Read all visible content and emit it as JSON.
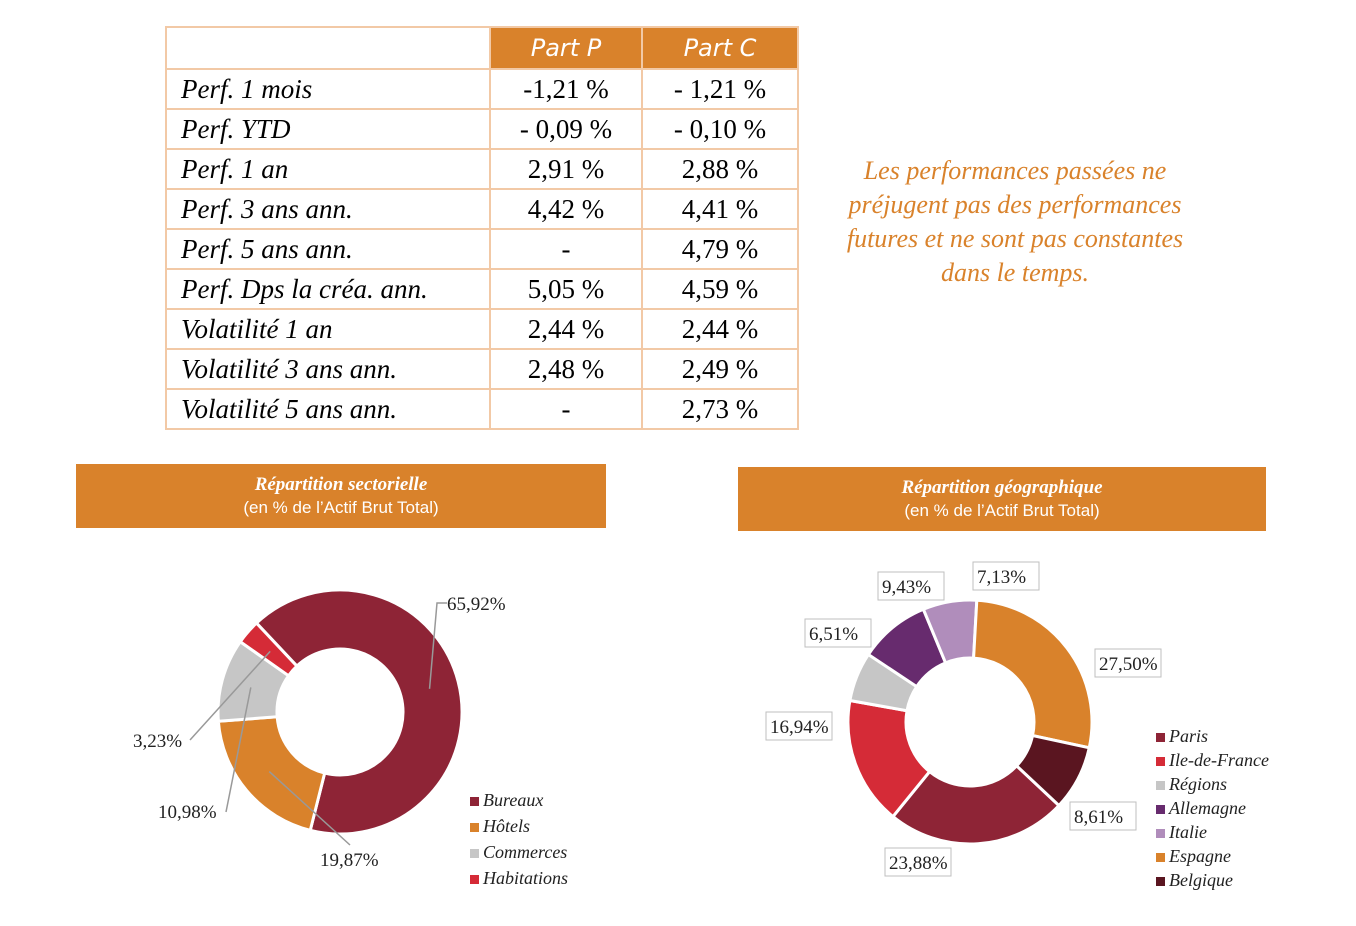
{
  "table": {
    "headers": [
      "",
      "Part P",
      "Part C"
    ],
    "rows": [
      {
        "label": "Perf. 1 mois",
        "p": "-1,21 %",
        "c": "- 1,21 %"
      },
      {
        "label": "Perf. YTD",
        "p": "- 0,09 %",
        "c": "- 0,10 %"
      },
      {
        "label": "Perf. 1 an",
        "p": "2,91 %",
        "c": "2,88 %"
      },
      {
        "label": "Perf. 3 ans ann.",
        "p": "4,42 %",
        "c": "4,41 %"
      },
      {
        "label": "Perf. 5 ans ann.",
        "p": "-",
        "c": "4,79 %"
      },
      {
        "label": "Perf. Dps la créa. ann.",
        "p": "5,05 %",
        "c": "4,59 %"
      },
      {
        "label": "Volatilité 1 an",
        "p": "2,44 %",
        "c": "2,44 %"
      },
      {
        "label": "Volatilité 3 ans ann.",
        "p": "2,48 %",
        "c": "2,49 %"
      },
      {
        "label": "Volatilité 5 ans ann.",
        "p": "-",
        "c": "2,73 %"
      }
    ]
  },
  "disclaimer": "Les performances passées ne préjugent pas des performances futures et ne sont pas constantes dans le temps.",
  "colors": {
    "accent": "#d9822b",
    "table_border": "#f2c9a6"
  },
  "chart_data": [
    {
      "type": "pie",
      "donut": true,
      "title": "Répartition sectorielle",
      "subtitle": "(en % de l’Actif Brut Total)",
      "legend_position": "bottom-right",
      "slices": [
        {
          "name": "Bureaux",
          "value": 65.92,
          "label": "65,92%",
          "color": "#8e2436"
        },
        {
          "name": "Hôtels",
          "value": 19.87,
          "label": "19,87%",
          "color": "#d9822b"
        },
        {
          "name": "Commerces",
          "value": 10.98,
          "label": "10,98%",
          "color": "#c6c6c6"
        },
        {
          "name": "Habitations",
          "value": 3.23,
          "label": "3,23%",
          "color": "#d52b37"
        }
      ]
    },
    {
      "type": "pie",
      "donut": true,
      "title": "Répartition géographique",
      "subtitle": "(en % de l’Actif Brut Total)",
      "legend_position": "right",
      "slices": [
        {
          "name": "Paris",
          "value": 23.88,
          "label": "23,88%",
          "color": "#8e2436"
        },
        {
          "name": "Ile-de-France",
          "value": 16.94,
          "label": "16,94%",
          "color": "#d52b37"
        },
        {
          "name": "Régions",
          "value": 6.51,
          "label": "6,51%",
          "color": "#c6c6c6"
        },
        {
          "name": "Allemagne",
          "value": 9.43,
          "label": "9,43%",
          "color": "#672b6e"
        },
        {
          "name": "Italie",
          "value": 7.13,
          "label": "7,13%",
          "color": "#b08dbb"
        },
        {
          "name": "Espagne",
          "value": 27.5,
          "label": "27,50%",
          "color": "#d9822b"
        },
        {
          "name": "Belgique",
          "value": 8.61,
          "label": "8,61%",
          "color": "#5a1520"
        }
      ]
    }
  ]
}
